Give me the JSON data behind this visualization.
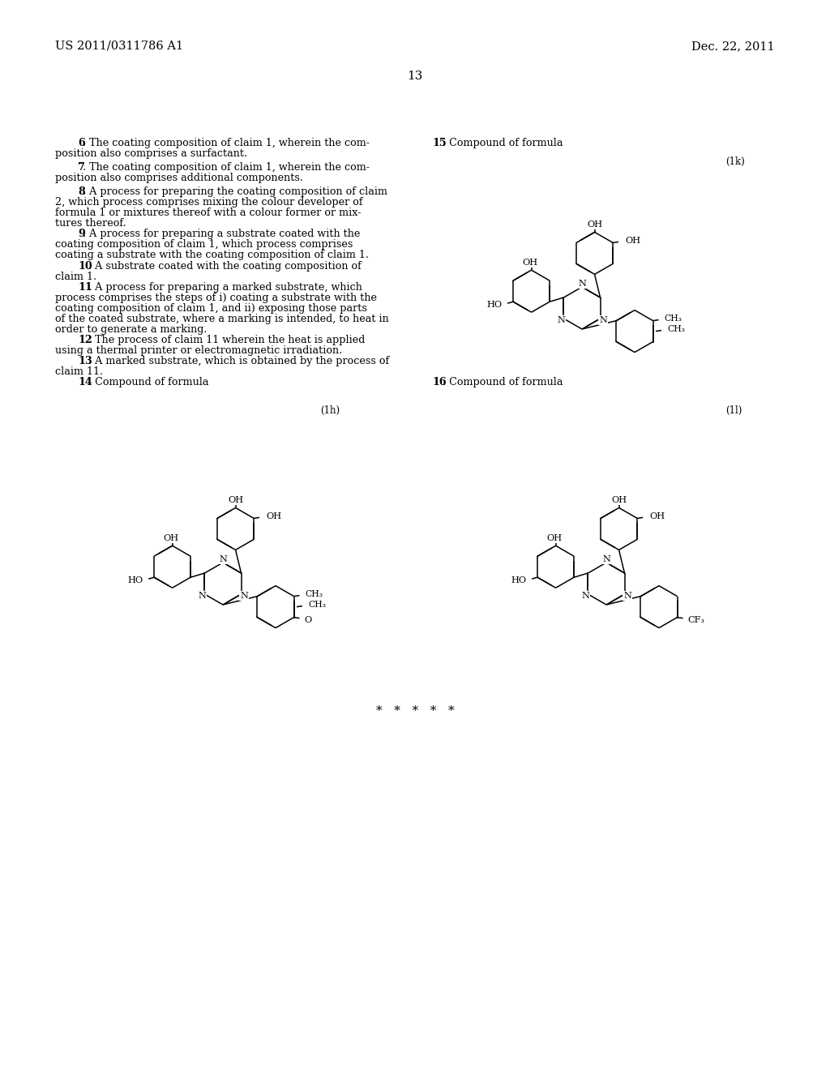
{
  "background_color": "#ffffff",
  "header_left": "US 2011/0311786 A1",
  "header_right": "Dec. 22, 2011",
  "page_number": "13"
}
